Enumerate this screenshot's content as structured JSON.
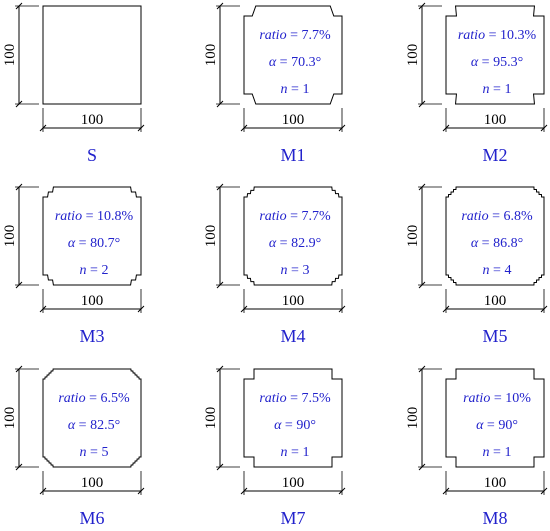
{
  "colors": {
    "outline": "#000000",
    "label": "#2222cc"
  },
  "dimension_label": "100",
  "sections": [
    {
      "id": "S",
      "caption": "S",
      "params": null,
      "shape": {
        "type": "square"
      }
    },
    {
      "id": "M1",
      "caption": "M1",
      "params": {
        "ratio_label": "ratio",
        "ratio_value": " = 7.7%",
        "alpha_label": "α",
        "alpha_value": " = 70.3°",
        "n_label": "n",
        "n_value": " = 1"
      },
      "shape": {
        "type": "step",
        "n": 1,
        "alpha_deg": 70.3
      }
    },
    {
      "id": "M2",
      "caption": "M2",
      "params": {
        "ratio_label": "ratio",
        "ratio_value": " = 10.3%",
        "alpha_label": "α",
        "alpha_value": " = 95.3°",
        "n_label": "n",
        "n_value": " = 1"
      },
      "shape": {
        "type": "step",
        "n": 1,
        "alpha_deg": 95.3
      }
    },
    {
      "id": "M3",
      "caption": "M3",
      "params": {
        "ratio_label": "ratio",
        "ratio_value": " = 10.8%",
        "alpha_label": "α",
        "alpha_value": " = 80.7°",
        "n_label": "n",
        "n_value": " = 2"
      },
      "shape": {
        "type": "step",
        "n": 2,
        "alpha_deg": 80.7
      }
    },
    {
      "id": "M4",
      "caption": "M4",
      "params": {
        "ratio_label": "ratio",
        "ratio_value": " = 7.7%",
        "alpha_label": "α",
        "alpha_value": " = 82.9°",
        "n_label": "n",
        "n_value": " = 3"
      },
      "shape": {
        "type": "step",
        "n": 3,
        "alpha_deg": 82.9
      }
    },
    {
      "id": "M5",
      "caption": "M5",
      "params": {
        "ratio_label": "ratio",
        "ratio_value": " = 6.8%",
        "alpha_label": "α",
        "alpha_value": " = 86.8°",
        "n_label": "n",
        "n_value": " = 4"
      },
      "shape": {
        "type": "step",
        "n": 4,
        "alpha_deg": 86.8
      }
    },
    {
      "id": "M6",
      "caption": "M6",
      "params": {
        "ratio_label": "ratio",
        "ratio_value": " = 6.5%",
        "alpha_label": "α",
        "alpha_value": " = 82.5°",
        "n_label": "n",
        "n_value": " = 5"
      },
      "shape": {
        "type": "step",
        "n": 5,
        "alpha_deg": 82.5
      }
    },
    {
      "id": "M7",
      "caption": "M7",
      "params": {
        "ratio_label": "ratio",
        "ratio_value": " = 7.5%",
        "alpha_label": "α",
        "alpha_value": " = 90°",
        "n_label": "n",
        "n_value": " = 1"
      },
      "shape": {
        "type": "step",
        "n": 1,
        "alpha_deg": 90
      }
    },
    {
      "id": "M8",
      "caption": "M8",
      "params": {
        "ratio_label": "ratio",
        "ratio_value": " = 10%",
        "alpha_label": "α",
        "alpha_value": " = 90°",
        "n_label": "n",
        "n_value": " = 1"
      },
      "shape": {
        "type": "step",
        "n": 1,
        "alpha_deg": 90
      }
    }
  ]
}
